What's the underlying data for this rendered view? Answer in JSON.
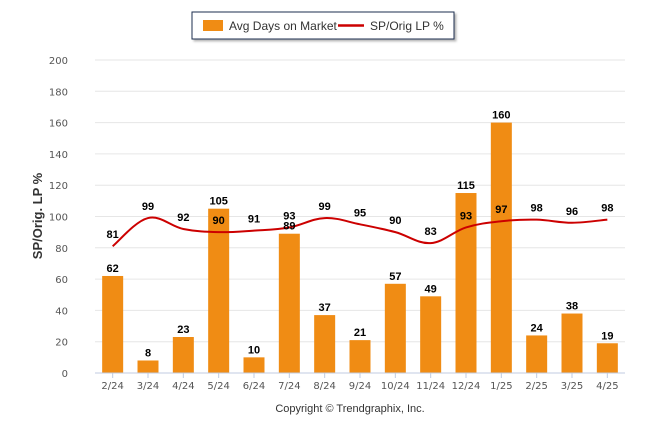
{
  "chart_data": {
    "type": "bar",
    "categories": [
      "2/24",
      "3/24",
      "4/24",
      "5/24",
      "6/24",
      "7/24",
      "8/24",
      "9/24",
      "10/24",
      "11/24",
      "12/24",
      "1/25",
      "2/25",
      "3/25",
      "4/25"
    ],
    "series": [
      {
        "name": "Avg Days on Market",
        "type": "bar",
        "color": "#f08c14",
        "values": [
          62,
          8,
          23,
          105,
          10,
          89,
          37,
          21,
          57,
          49,
          115,
          160,
          24,
          38,
          19
        ]
      },
      {
        "name": "SP/Orig LP %",
        "type": "line",
        "color": "#cc0000",
        "values": [
          81,
          99,
          92,
          90,
          91,
          93,
          99,
          95,
          90,
          83,
          93,
          97,
          98,
          96,
          98
        ]
      }
    ],
    "ylabel": "SP/Orig. LP %",
    "ylim": [
      0,
      200
    ],
    "yticks": [
      0,
      20,
      40,
      60,
      80,
      100,
      120,
      140,
      160,
      180,
      200
    ],
    "grid": true,
    "legend_position": "top-center"
  },
  "footer": {
    "copyright": "Copyright © Trendgraphix, Inc."
  }
}
